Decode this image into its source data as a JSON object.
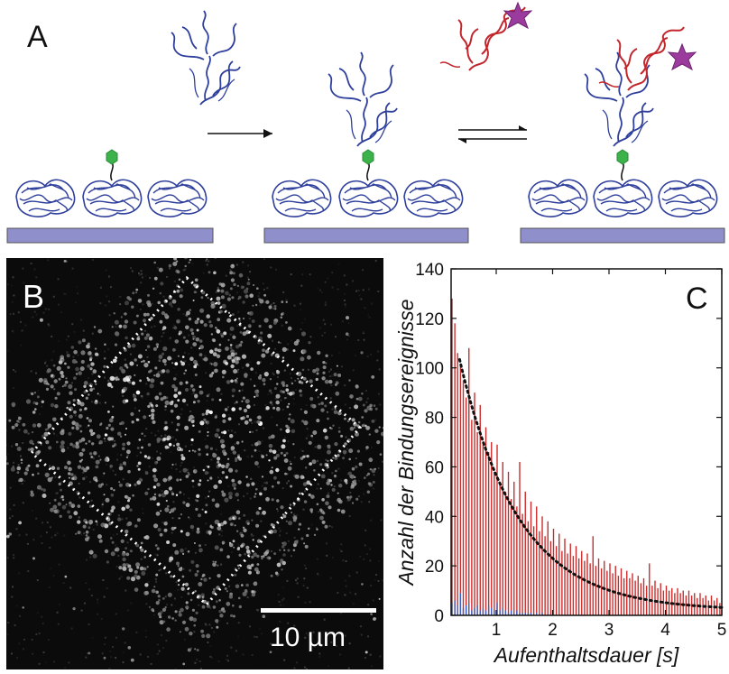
{
  "panel_a": {
    "letter": "A"
  },
  "panel_b": {
    "letter": "B",
    "scale_label": "10 µm"
  },
  "panel_c": {
    "letter": "C"
  },
  "colors": {
    "protein_blue": "#2f3f9c",
    "protein_red": "#c1272d",
    "star_magenta": "#9b3b9e",
    "anchor_green": "#3bb34a",
    "substrate": "#8f8fcb",
    "bar_red": "#cc2a2a",
    "bar_blue": "#3f5fc0"
  },
  "chart_data": {
    "type": "bar",
    "xlabel": "Aufenthaltsdauer [s]",
    "ylabel": "Anzahl der Bindungsereignisse",
    "xlim": [
      0.2,
      5
    ],
    "ylim": [
      0,
      140
    ],
    "xticks": [
      "1",
      "2",
      "3",
      "4",
      "5"
    ],
    "yticks": [
      "0",
      "20",
      "40",
      "60",
      "80",
      "100",
      "120",
      "140"
    ],
    "bin_start": 0.2,
    "bin_width": 0.05,
    "series": [
      {
        "values": [
          128,
          118,
          106,
          101,
          95,
          88,
          108,
          79,
          90,
          74,
          85,
          70,
          76,
          66,
          70,
          58,
          69,
          54,
          62,
          50,
          58,
          47,
          54,
          44,
          62,
          41,
          50,
          38,
          46,
          36,
          44,
          34,
          40,
          32,
          38,
          30,
          35,
          28,
          33,
          26,
          31,
          25,
          29,
          24,
          28,
          23,
          26,
          22,
          25,
          21,
          32,
          20,
          23,
          19,
          22,
          18,
          21,
          17,
          20,
          16,
          19,
          15,
          18,
          15,
          17,
          14,
          16,
          13,
          15,
          12,
          21,
          12,
          14,
          11,
          13,
          10,
          12,
          10,
          11,
          9,
          11,
          9,
          10,
          8,
          10,
          8,
          9,
          7,
          9,
          7,
          8,
          6,
          8,
          6,
          7,
          5
        ]
      },
      {
        "values": [
          5,
          6,
          4,
          9,
          3,
          4,
          5,
          2,
          3,
          4,
          2,
          3,
          2,
          4,
          3,
          2,
          5,
          2,
          3,
          2,
          1,
          2,
          1,
          2,
          1,
          1,
          1,
          1,
          1,
          0,
          1,
          0,
          1,
          0,
          0,
          0,
          0,
          0,
          0,
          0,
          0,
          0,
          0,
          0,
          0,
          0,
          0,
          0,
          0,
          0,
          0,
          0,
          0,
          0,
          0,
          0,
          0,
          0,
          0,
          0,
          0,
          0,
          0,
          0,
          0,
          0,
          0,
          0,
          0,
          0,
          0,
          0,
          0,
          0,
          0,
          0,
          0,
          0,
          0,
          0,
          0,
          0,
          0,
          0,
          0,
          0,
          0,
          0,
          0,
          0,
          0,
          0,
          0,
          0,
          0,
          0
        ]
      }
    ],
    "fit": {
      "type": "exponential",
      "amplitude": 130,
      "tau": 1.05,
      "x_start": 0.35,
      "x_end": 5.0
    }
  }
}
